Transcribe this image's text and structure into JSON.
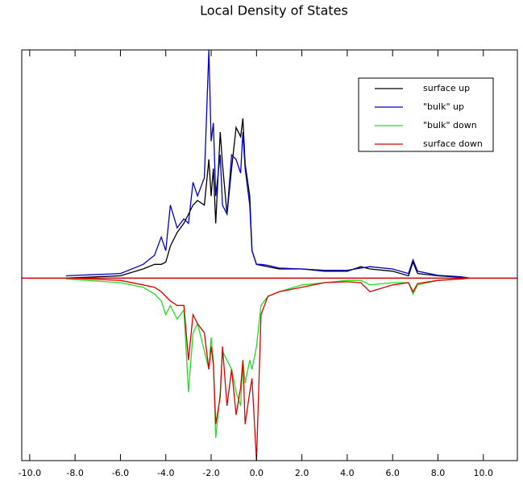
{
  "chart_data": {
    "type": "line",
    "title": "Local Density of States",
    "x": [
      -8.4,
      -6,
      -5,
      -4.5,
      -4.2,
      -4,
      -3.8,
      -3.5,
      -3.2,
      -3,
      -2.8,
      -2.6,
      -2.3,
      -2.1,
      -2.0,
      -1.9,
      -1.8,
      -1.6,
      -1.5,
      -1.3,
      -1.1,
      -0.9,
      -0.7,
      -0.6,
      -0.5,
      -0.3,
      -0.2,
      0,
      0.2,
      0.5,
      1,
      2,
      3,
      4,
      4.6,
      5,
      6,
      6.7,
      6.9,
      7.1,
      8,
      9,
      9.4
    ],
    "series": [
      {
        "name": "surface up",
        "color": "#000000",
        "values": [
          0,
          0.05,
          0.2,
          0.3,
          0.3,
          0.35,
          0.7,
          1.0,
          1.2,
          1.4,
          1.6,
          1.7,
          1.6,
          2.6,
          1.8,
          2.4,
          1.2,
          3.2,
          2.5,
          1.4,
          2.4,
          3.3,
          3.1,
          3.5,
          2.5,
          1.8,
          0.6,
          0.3,
          0.28,
          0.25,
          0.2,
          0.2,
          0.15,
          0.15,
          0.25,
          0.2,
          0.15,
          0.05,
          0.35,
          0.1,
          0.05,
          0.02,
          0
        ]
      },
      {
        "name": "\"bulk\" up",
        "color": "#0000cc",
        "values": [
          0.05,
          0.1,
          0.3,
          0.5,
          0.9,
          0.6,
          1.6,
          1.1,
          1.3,
          1.2,
          2.1,
          1.8,
          2.2,
          5.0,
          3.0,
          3.4,
          1.8,
          2.7,
          1.6,
          1.4,
          2.7,
          2.6,
          2.3,
          3.2,
          2.4,
          1.6,
          0.6,
          0.3,
          0.3,
          0.28,
          0.22,
          0.2,
          0.17,
          0.17,
          0.22,
          0.25,
          0.2,
          0.1,
          0.4,
          0.15,
          0.06,
          0.03,
          0
        ]
      },
      {
        "name": "\"bulk\" down",
        "color": "#22dd22",
        "values": [
          -0.02,
          -0.1,
          -0.2,
          -0.35,
          -0.5,
          -0.8,
          -0.6,
          -0.9,
          -0.7,
          -2.5,
          -1.2,
          -1.0,
          -1.6,
          -2.0,
          -1.3,
          -1.8,
          -3.5,
          -2.5,
          -1.6,
          -1.8,
          -2.0,
          -2.5,
          -2.8,
          -1.8,
          -2.3,
          -1.8,
          -2.0,
          -1.5,
          -0.6,
          -0.4,
          -0.3,
          -0.15,
          -0.1,
          -0.05,
          -0.05,
          -0.15,
          -0.1,
          -0.1,
          -0.35,
          -0.15,
          -0.05,
          -0.02,
          0
        ]
      },
      {
        "name": "surface down",
        "color": "#dd0000",
        "values": [
          0,
          -0.05,
          -0.15,
          -0.2,
          -0.3,
          -0.4,
          -0.5,
          -0.6,
          -0.6,
          -1.8,
          -0.8,
          -1.0,
          -1.2,
          -2.0,
          -1.5,
          -1.9,
          -3.2,
          -2.6,
          -1.5,
          -2.8,
          -2.0,
          -3.0,
          -2.4,
          -1.8,
          -3.2,
          -2.5,
          -2.2,
          -4.0,
          -0.8,
          -0.4,
          -0.3,
          -0.2,
          -0.1,
          -0.08,
          -0.1,
          -0.3,
          -0.15,
          -0.1,
          -0.3,
          -0.12,
          -0.05,
          -0.02,
          0
        ]
      }
    ],
    "xlim": [
      -10.35,
      11.5
    ],
    "xticks": [
      {
        "value": -10,
        "label": "-10.0"
      },
      {
        "value": -8,
        "label": "-8.0"
      },
      {
        "value": -6,
        "label": "-6.0"
      },
      {
        "value": -4,
        "label": "-4.0"
      },
      {
        "value": -2,
        "label": "-2.0"
      },
      {
        "value": 0,
        "label": "0.0"
      },
      {
        "value": 2,
        "label": "2.0"
      },
      {
        "value": 4,
        "label": "4.0"
      },
      {
        "value": 6,
        "label": "6.0"
      },
      {
        "value": 8,
        "label": "8.0"
      },
      {
        "value": 10,
        "label": "10.0"
      }
    ],
    "ylim": [
      -4,
      5
    ],
    "legend": "upper right"
  }
}
